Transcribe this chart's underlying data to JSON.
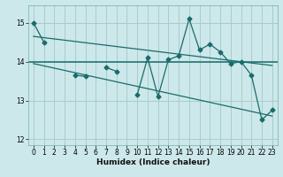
{
  "title": "",
  "xlabel": "Humidex (Indice chaleur)",
  "bg_color": "#cce8ea",
  "grid_color": "#aacccc",
  "line_color": "#1a6b6b",
  "x_values": [
    0,
    1,
    2,
    3,
    4,
    5,
    6,
    7,
    8,
    9,
    10,
    11,
    12,
    13,
    14,
    15,
    16,
    17,
    18,
    19,
    20,
    21,
    22,
    23
  ],
  "y_main": [
    15.0,
    14.5,
    null,
    null,
    13.65,
    13.62,
    null,
    13.85,
    13.75,
    null,
    13.15,
    14.1,
    13.1,
    14.05,
    14.15,
    15.1,
    14.3,
    14.45,
    14.25,
    13.95,
    14.0,
    13.65,
    12.5,
    12.75
  ],
  "y_trend1_x": [
    0,
    23
  ],
  "y_trend1_y": [
    14.65,
    13.9
  ],
  "y_trend2_x": [
    0,
    23
  ],
  "y_trend2_y": [
    13.95,
    12.6
  ],
  "y_hline": 14.0,
  "ylim": [
    11.85,
    15.45
  ],
  "xlim": [
    -0.5,
    23.5
  ],
  "yticks": [
    12,
    13,
    14,
    15
  ],
  "xticks": [
    0,
    1,
    2,
    3,
    4,
    5,
    6,
    7,
    8,
    9,
    10,
    11,
    12,
    13,
    14,
    15,
    16,
    17,
    18,
    19,
    20,
    21,
    22,
    23
  ]
}
